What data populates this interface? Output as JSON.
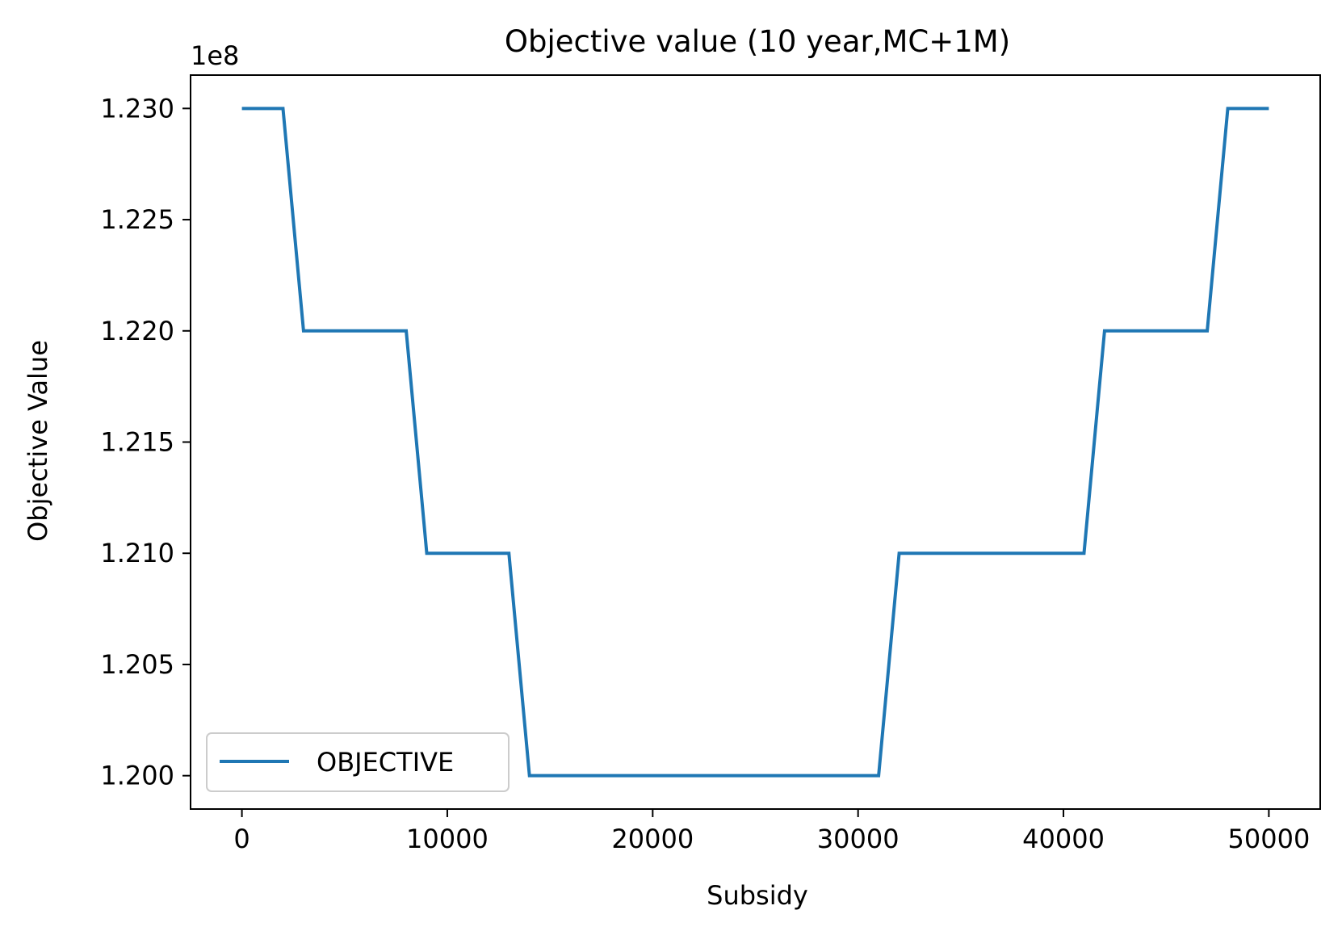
{
  "chart_data": {
    "type": "line",
    "title": "Objective value (10 year,MC+1M)",
    "xlabel": "Subsidy",
    "ylabel": "Objective Value",
    "y_offset_label": "1e8",
    "y_scale_factor": 100000000,
    "xlim": [
      -2500,
      52500
    ],
    "ylim": [
      119850000,
      123150000
    ],
    "x_ticks": [
      0,
      10000,
      20000,
      30000,
      40000,
      50000
    ],
    "x_tick_labels": [
      "0",
      "10000",
      "20000",
      "30000",
      "40000",
      "50000"
    ],
    "y_ticks": [
      120000000,
      120500000,
      121000000,
      121500000,
      122000000,
      122500000,
      123000000
    ],
    "y_tick_labels": [
      "1.200",
      "1.205",
      "1.210",
      "1.215",
      "1.220",
      "1.225",
      "1.230"
    ],
    "grid": false,
    "legend_position": "lower-left",
    "series": [
      {
        "name": "OBJECTIVE",
        "color": "#1f77b4",
        "x": [
          0,
          2000,
          3000,
          8000,
          9000,
          13000,
          14000,
          31000,
          32000,
          41000,
          42000,
          47000,
          48000,
          50000
        ],
        "y": [
          123000000,
          123000000,
          122000000,
          122000000,
          121000000,
          121000000,
          120000000,
          120000000,
          121000000,
          121000000,
          122000000,
          122000000,
          123000000,
          123000000
        ]
      }
    ]
  }
}
